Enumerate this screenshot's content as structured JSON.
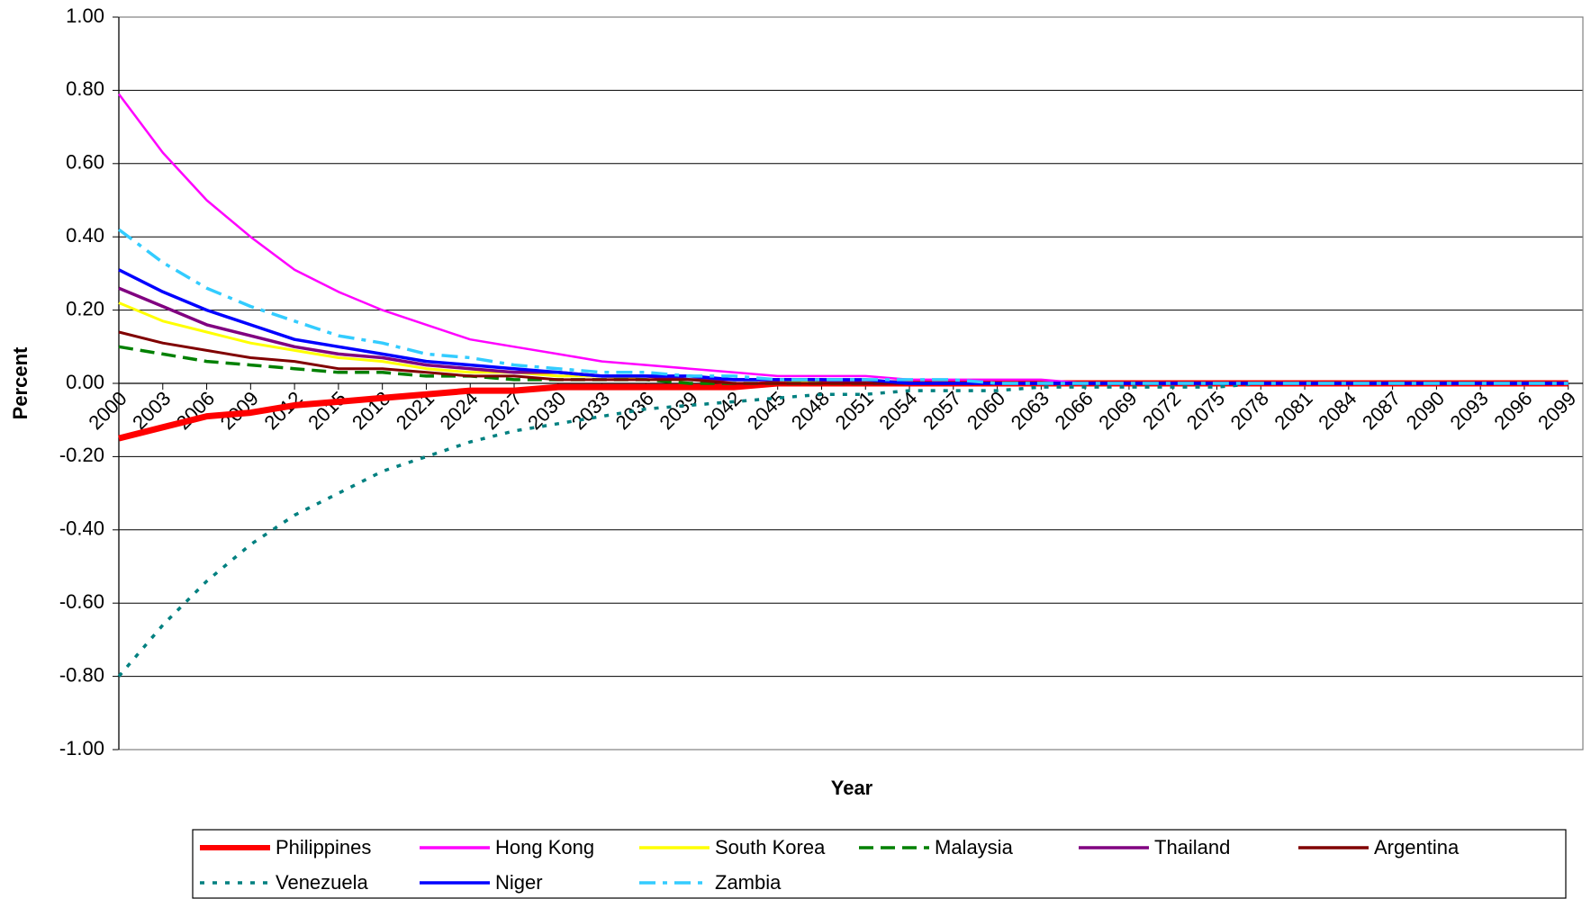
{
  "chart_data": {
    "type": "line",
    "x_label": "Year",
    "y_label": "Percent",
    "x": [
      2000,
      2003,
      2006,
      2009,
      2012,
      2015,
      2018,
      2021,
      2024,
      2027,
      2030,
      2033,
      2036,
      2039,
      2042,
      2045,
      2048,
      2051,
      2054,
      2057,
      2060,
      2063,
      2066,
      2069,
      2072,
      2075,
      2078,
      2081,
      2084,
      2087,
      2090,
      2093,
      2096,
      2099
    ],
    "xlim": [
      2000,
      2100
    ],
    "xticks": [
      2000,
      2003,
      2006,
      2009,
      2012,
      2015,
      2018,
      2021,
      2024,
      2027,
      2030,
      2033,
      2036,
      2039,
      2042,
      2045,
      2048,
      2051,
      2054,
      2057,
      2060,
      2063,
      2066,
      2069,
      2072,
      2075,
      2078,
      2081,
      2084,
      2087,
      2090,
      2093,
      2096,
      2099
    ],
    "ylim": [
      -1,
      1
    ],
    "yticks": [
      {
        "value": -1,
        "label": "-1.00"
      },
      {
        "value": -0.8,
        "label": "-0.80"
      },
      {
        "value": -0.6,
        "label": "-0.60"
      },
      {
        "value": -0.4,
        "label": "-0.40"
      },
      {
        "value": -0.2,
        "label": "-0.20"
      },
      {
        "value": 0,
        "label": "0.00"
      },
      {
        "value": 0.2,
        "label": "0.20"
      },
      {
        "value": 0.4,
        "label": "0.40"
      },
      {
        "value": 0.6,
        "label": "0.60"
      },
      {
        "value": 0.8,
        "label": "0.80"
      },
      {
        "value": 1,
        "label": "1.00"
      }
    ],
    "grid": true,
    "legend": "bottom",
    "series": [
      {
        "name": "Philippines",
        "color": "#ff0000",
        "dash": "solid",
        "line_width": 7,
        "values": [
          -0.15,
          -0.12,
          -0.09,
          -0.08,
          -0.06,
          -0.05,
          -0.04,
          -0.03,
          -0.02,
          -0.02,
          -0.01,
          -0.01,
          -0.01,
          -0.01,
          -0.01,
          0,
          0,
          0,
          0,
          0,
          0,
          0,
          0,
          0,
          0,
          0,
          0,
          0,
          0,
          0,
          0,
          0,
          0,
          0
        ]
      },
      {
        "name": "Hong Kong",
        "color": "#ff00ff",
        "dash": "solid",
        "line_width": 2.5,
        "values": [
          0.79,
          0.63,
          0.5,
          0.4,
          0.31,
          0.25,
          0.2,
          0.16,
          0.12,
          0.1,
          0.08,
          0.06,
          0.05,
          0.04,
          0.03,
          0.02,
          0.02,
          0.02,
          0.01,
          0.01,
          0.01,
          0.01,
          0,
          0,
          0,
          0,
          0,
          0,
          0,
          0,
          0,
          0,
          0,
          0
        ]
      },
      {
        "name": "South Korea",
        "color": "#ffff00",
        "dash": "solid",
        "line_width": 3,
        "values": [
          0.22,
          0.17,
          0.14,
          0.11,
          0.09,
          0.07,
          0.06,
          0.04,
          0.03,
          0.03,
          0.02,
          0.02,
          0.01,
          0.01,
          0.01,
          0.01,
          0,
          0,
          0,
          0,
          0,
          0,
          0,
          0,
          0,
          0,
          0,
          0,
          0,
          0,
          0,
          0,
          0,
          0
        ]
      },
      {
        "name": "Malaysia",
        "color": "#008000",
        "dash": "dashed",
        "line_width": 3.5,
        "values": [
          0.1,
          0.08,
          0.06,
          0.05,
          0.04,
          0.03,
          0.03,
          0.02,
          0.02,
          0.01,
          0.01,
          0.01,
          0.01,
          0,
          0,
          0,
          0,
          0,
          0,
          0,
          0,
          0,
          0,
          0,
          0,
          0,
          0,
          0,
          0,
          0,
          0,
          0,
          0,
          0
        ]
      },
      {
        "name": "Thailand",
        "color": "#800080",
        "dash": "solid",
        "line_width": 3.5,
        "values": [
          0.26,
          0.21,
          0.16,
          0.13,
          0.1,
          0.08,
          0.07,
          0.05,
          0.04,
          0.03,
          0.03,
          0.02,
          0.02,
          0.01,
          0.01,
          0.01,
          0.01,
          0,
          0,
          0,
          0,
          0,
          0,
          0,
          0,
          0,
          0,
          0,
          0,
          0,
          0,
          0,
          0,
          0
        ]
      },
      {
        "name": "Argentina",
        "color": "#800000",
        "dash": "solid",
        "line_width": 3,
        "values": [
          0.14,
          0.11,
          0.09,
          0.07,
          0.06,
          0.04,
          0.04,
          0.03,
          0.02,
          0.02,
          0.01,
          0.01,
          0.01,
          0.01,
          0,
          0,
          0,
          0,
          0,
          0,
          0,
          0,
          0,
          0,
          0,
          0,
          0,
          0,
          0,
          0,
          0,
          0,
          0,
          0
        ]
      },
      {
        "name": "Venezuela",
        "color": "#008080",
        "dash": "dotted",
        "line_width": 3.5,
        "values": [
          -0.8,
          -0.66,
          -0.54,
          -0.44,
          -0.36,
          -0.3,
          -0.24,
          -0.2,
          -0.16,
          -0.13,
          -0.11,
          -0.09,
          -0.07,
          -0.06,
          -0.05,
          -0.04,
          -0.03,
          -0.03,
          -0.02,
          -0.02,
          -0.02,
          -0.01,
          -0.01,
          -0.01,
          -0.01,
          -0.01,
          0,
          0,
          0,
          0,
          0,
          0,
          0,
          0
        ]
      },
      {
        "name": "Niger",
        "color": "#0000ff",
        "dash": "solid",
        "line_width": 3.5,
        "values": [
          0.31,
          0.25,
          0.2,
          0.16,
          0.12,
          0.1,
          0.08,
          0.06,
          0.05,
          0.04,
          0.03,
          0.02,
          0.02,
          0.02,
          0.01,
          0.01,
          0.01,
          0.01,
          0,
          0,
          0,
          0,
          0,
          0,
          0,
          0,
          0,
          0,
          0,
          0,
          0,
          0,
          0,
          0
        ]
      },
      {
        "name": "Zambia",
        "color": "#33ccff",
        "dash": "dashdot",
        "line_width": 3.5,
        "values": [
          0.42,
          0.33,
          0.26,
          0.21,
          0.17,
          0.13,
          0.11,
          0.08,
          0.07,
          0.05,
          0.04,
          0.03,
          0.03,
          0.02,
          0.02,
          0.01,
          0.01,
          0.01,
          0.01,
          0.01,
          0,
          0,
          0,
          0,
          0,
          0,
          0,
          0,
          0,
          0,
          0,
          0,
          0,
          0
        ]
      }
    ]
  }
}
